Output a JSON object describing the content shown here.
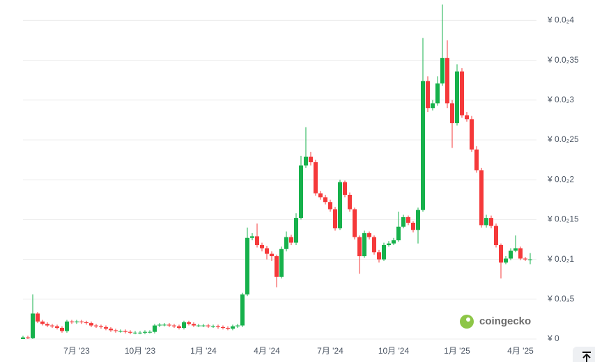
{
  "chart_data": {
    "type": "candlestick",
    "categories": [
      null,
      null,
      null,
      null,
      null,
      null,
      null,
      null,
      null,
      null,
      null,
      "7月 '23",
      null,
      null,
      null,
      null,
      null,
      null,
      null,
      null,
      null,
      null,
      null,
      null,
      "10月 '23",
      null,
      null,
      null,
      null,
      null,
      null,
      null,
      null,
      null,
      null,
      null,
      null,
      "1月 '24",
      null,
      null,
      null,
      null,
      null,
      null,
      null,
      null,
      null,
      null,
      null,
      null,
      "4月 '24",
      null,
      null,
      null,
      null,
      null,
      null,
      null,
      null,
      null,
      null,
      null,
      null,
      "7月 '24",
      null,
      null,
      null,
      null,
      null,
      null,
      null,
      null,
      null,
      null,
      null,
      null,
      "10月 '24",
      null,
      null,
      null,
      null,
      null,
      null,
      null,
      null,
      null,
      null,
      null,
      null,
      "1月 '25",
      null,
      null,
      null,
      null,
      null,
      null,
      null,
      null,
      null,
      null,
      null,
      null,
      "4月 '25",
      null,
      null
    ],
    "open": [
      0,
      2e-05,
      1e-05,
      0.00032,
      0.00022,
      0.00019,
      0.00017,
      0.00016,
      0.00014,
      0.0001,
      0.00022,
      0.00021,
      0.00022,
      0.00021,
      0.0002,
      0.00017,
      0.00016,
      0.00015,
      0.00013,
      0.00011,
      0.0001,
      0.0001,
      9e-05,
      8e-05,
      8e-05,
      8e-05,
      9e-05,
      9e-05,
      0.00017,
      0.00018,
      0.00018,
      0.00017,
      0.00016,
      0.00014,
      0.00021,
      0.00019,
      0.00017,
      0.00017,
      0.00017,
      0.00016,
      0.00016,
      0.00015,
      0.00014,
      0.00013,
      0.00016,
      0.00017,
      0.00056,
      0.00127,
      0.00129,
      0.00118,
      0.00114,
      0.00107,
      0.00104,
      0.00078,
      0.00113,
      0.00128,
      0.00121,
      0.00152,
      0.00218,
      0.00229,
      0.00222,
      0.00183,
      0.00178,
      0.00172,
      0.00163,
      0.00139,
      0.00197,
      0.00181,
      0.00163,
      0.00128,
      0.00104,
      0.00133,
      0.00128,
      0.00109,
      0.001,
      0.00118,
      0.0012,
      0.00124,
      0.00141,
      0.00153,
      0.00146,
      0.00137,
      0.00162,
      0.00324,
      0.0029,
      0.00296,
      0.00321,
      0.00353,
      0.00296,
      0.00271,
      0.00336,
      0.00281,
      0.00276,
      0.00238,
      0.00212,
      0.00143,
      0.00152,
      0.00142,
      0.00118,
      0.00096,
      0.00101,
      0.00111,
      0.00114,
      0.00101,
      0.001
    ],
    "high": [
      4e-05,
      4e-05,
      0.00056,
      0.00034,
      0.00024,
      0.00021,
      0.00019,
      0.00018,
      0.00016,
      0.00024,
      0.00024,
      0.00024,
      0.00024,
      0.00023,
      0.00022,
      0.00019,
      0.00018,
      0.00017,
      0.00015,
      0.00013,
      0.00012,
      0.00012,
      0.00011,
      0.0001,
      0.0001,
      0.00011,
      0.00011,
      0.00019,
      0.0002,
      0.0002,
      0.0002,
      0.00019,
      0.00018,
      0.00023,
      0.00023,
      0.00021,
      0.00019,
      0.00019,
      0.00019,
      0.00018,
      0.00018,
      0.00017,
      0.00016,
      0.00018,
      0.00019,
      0.00058,
      0.0014,
      0.00133,
      0.00145,
      0.00121,
      0.00117,
      0.0011,
      0.00106,
      0.00116,
      0.00135,
      0.00131,
      0.00158,
      0.0023,
      0.00266,
      0.00235,
      0.00225,
      0.00186,
      0.00181,
      0.00175,
      0.00166,
      0.002,
      0.00199,
      0.00184,
      0.00165,
      0.0013,
      0.00136,
      0.00135,
      0.0013,
      0.00112,
      0.00121,
      0.00123,
      0.00127,
      0.0016,
      0.00156,
      0.00155,
      0.00148,
      0.00165,
      0.00378,
      0.0033,
      0.003,
      0.0033,
      0.0042,
      0.00375,
      0.003,
      0.00345,
      0.0034,
      0.00285,
      0.0028,
      0.00242,
      0.00215,
      0.00156,
      0.00155,
      0.00145,
      0.0012,
      0.00104,
      0.00114,
      0.0013,
      0.00116,
      0.00103,
      0.00108
    ],
    "low": [
      0,
      0,
      0,
      0.0002,
      0.00017,
      0.00015,
      0.00014,
      0.00012,
      8e-05,
      8e-05,
      0.00019,
      0.00019,
      0.00019,
      0.00018,
      0.00015,
      0.00014,
      0.00013,
      0.00011,
      9e-05,
      8e-05,
      8e-05,
      7e-05,
      6e-05,
      6e-05,
      6e-05,
      6e-05,
      7e-05,
      7e-05,
      0.00015,
      0.00016,
      0.00015,
      0.00014,
      0.00012,
      0.00012,
      0.00017,
      0.00015,
      0.00015,
      0.00015,
      0.00014,
      0.00014,
      0.00013,
      0.00012,
      0.00011,
      0.00011,
      0.00014,
      0.00015,
      0.00054,
      0.00124,
      0.00115,
      0.0011,
      0.001,
      0.00098,
      0.00065,
      0.00076,
      0.0011,
      0.00118,
      0.00118,
      0.0015,
      0.00215,
      0.00218,
      0.0018,
      0.00175,
      0.00169,
      0.0016,
      0.00136,
      0.00137,
      0.00178,
      0.0016,
      0.00125,
      0.00082,
      0.00102,
      0.00125,
      0.00106,
      0.00096,
      0.00098,
      0.00116,
      0.00118,
      0.00122,
      0.00139,
      0.00143,
      0.00134,
      0.0012,
      0.0016,
      0.00285,
      0.00287,
      0.00293,
      0.00318,
      0.0029,
      0.0024,
      0.00268,
      0.00278,
      0.00273,
      0.00235,
      0.00209,
      0.0014,
      0.0014,
      0.00139,
      0.00115,
      0.00076,
      0.00094,
      0.00099,
      0.00109,
      0.00099,
      0.00098,
      0.00094
    ],
    "close": [
      2e-05,
      1e-05,
      0.00032,
      0.00022,
      0.00019,
      0.00017,
      0.00016,
      0.00014,
      0.0001,
      0.00022,
      0.00021,
      0.00022,
      0.00021,
      0.0002,
      0.00017,
      0.00016,
      0.00015,
      0.00013,
      0.00011,
      0.0001,
      0.0001,
      9e-05,
      8e-05,
      8e-05,
      8e-05,
      9e-05,
      9e-05,
      0.00017,
      0.00018,
      0.00018,
      0.00017,
      0.00016,
      0.00014,
      0.00021,
      0.00019,
      0.00017,
      0.00017,
      0.00017,
      0.00016,
      0.00016,
      0.00015,
      0.00014,
      0.00013,
      0.00016,
      0.00017,
      0.00056,
      0.00127,
      0.00129,
      0.00118,
      0.00114,
      0.00107,
      0.00104,
      0.00078,
      0.00113,
      0.00128,
      0.00121,
      0.00152,
      0.00218,
      0.00229,
      0.00222,
      0.00183,
      0.00178,
      0.00172,
      0.00163,
      0.00139,
      0.00197,
      0.00181,
      0.00163,
      0.00128,
      0.00104,
      0.00133,
      0.00128,
      0.00109,
      0.001,
      0.00118,
      0.0012,
      0.00124,
      0.00141,
      0.00153,
      0.00146,
      0.00137,
      0.00162,
      0.00324,
      0.0029,
      0.00296,
      0.00321,
      0.00353,
      0.00296,
      0.00271,
      0.00336,
      0.00281,
      0.00276,
      0.00238,
      0.00212,
      0.00143,
      0.00152,
      0.00142,
      0.00118,
      0.00096,
      0.00101,
      0.00111,
      0.00114,
      0.00101,
      0.001,
      0.001
    ],
    "up_color": "#16b14b",
    "down_color": "#f5393a",
    "ylim": [
      0,
      0.004
    ],
    "yticks": [
      {
        "value": 0,
        "label": "¥ 0"
      },
      {
        "value": 0.0005,
        "label": "¥ 0.0₃5"
      },
      {
        "value": 0.001,
        "label": "¥ 0.0₂1"
      },
      {
        "value": 0.0015,
        "label": "¥ 0.0₂15"
      },
      {
        "value": 0.002,
        "label": "¥ 0.0₂2"
      },
      {
        "value": 0.0025,
        "label": "¥ 0.0₂25"
      },
      {
        "value": 0.003,
        "label": "¥ 0.0₂3"
      },
      {
        "value": 0.0035,
        "label": "¥ 0.0₂35"
      },
      {
        "value": 0.004,
        "label": "¥ 0.0₂4"
      }
    ],
    "grid": true,
    "watermark": "coingecko"
  }
}
